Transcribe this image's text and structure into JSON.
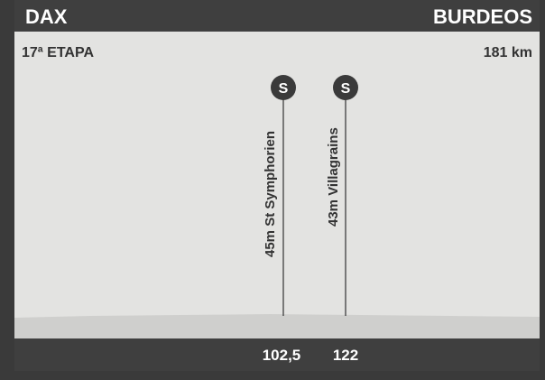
{
  "header": {
    "start": "DAX",
    "finish": "BURDEOS"
  },
  "stage": "17ª ETAPA",
  "distance": "181 km",
  "sprints": [
    {
      "icon": "S",
      "label": "45m St Symphorien",
      "km": "102,5"
    },
    {
      "icon": "S",
      "label": "43m Villagrains",
      "km": "122"
    }
  ]
}
